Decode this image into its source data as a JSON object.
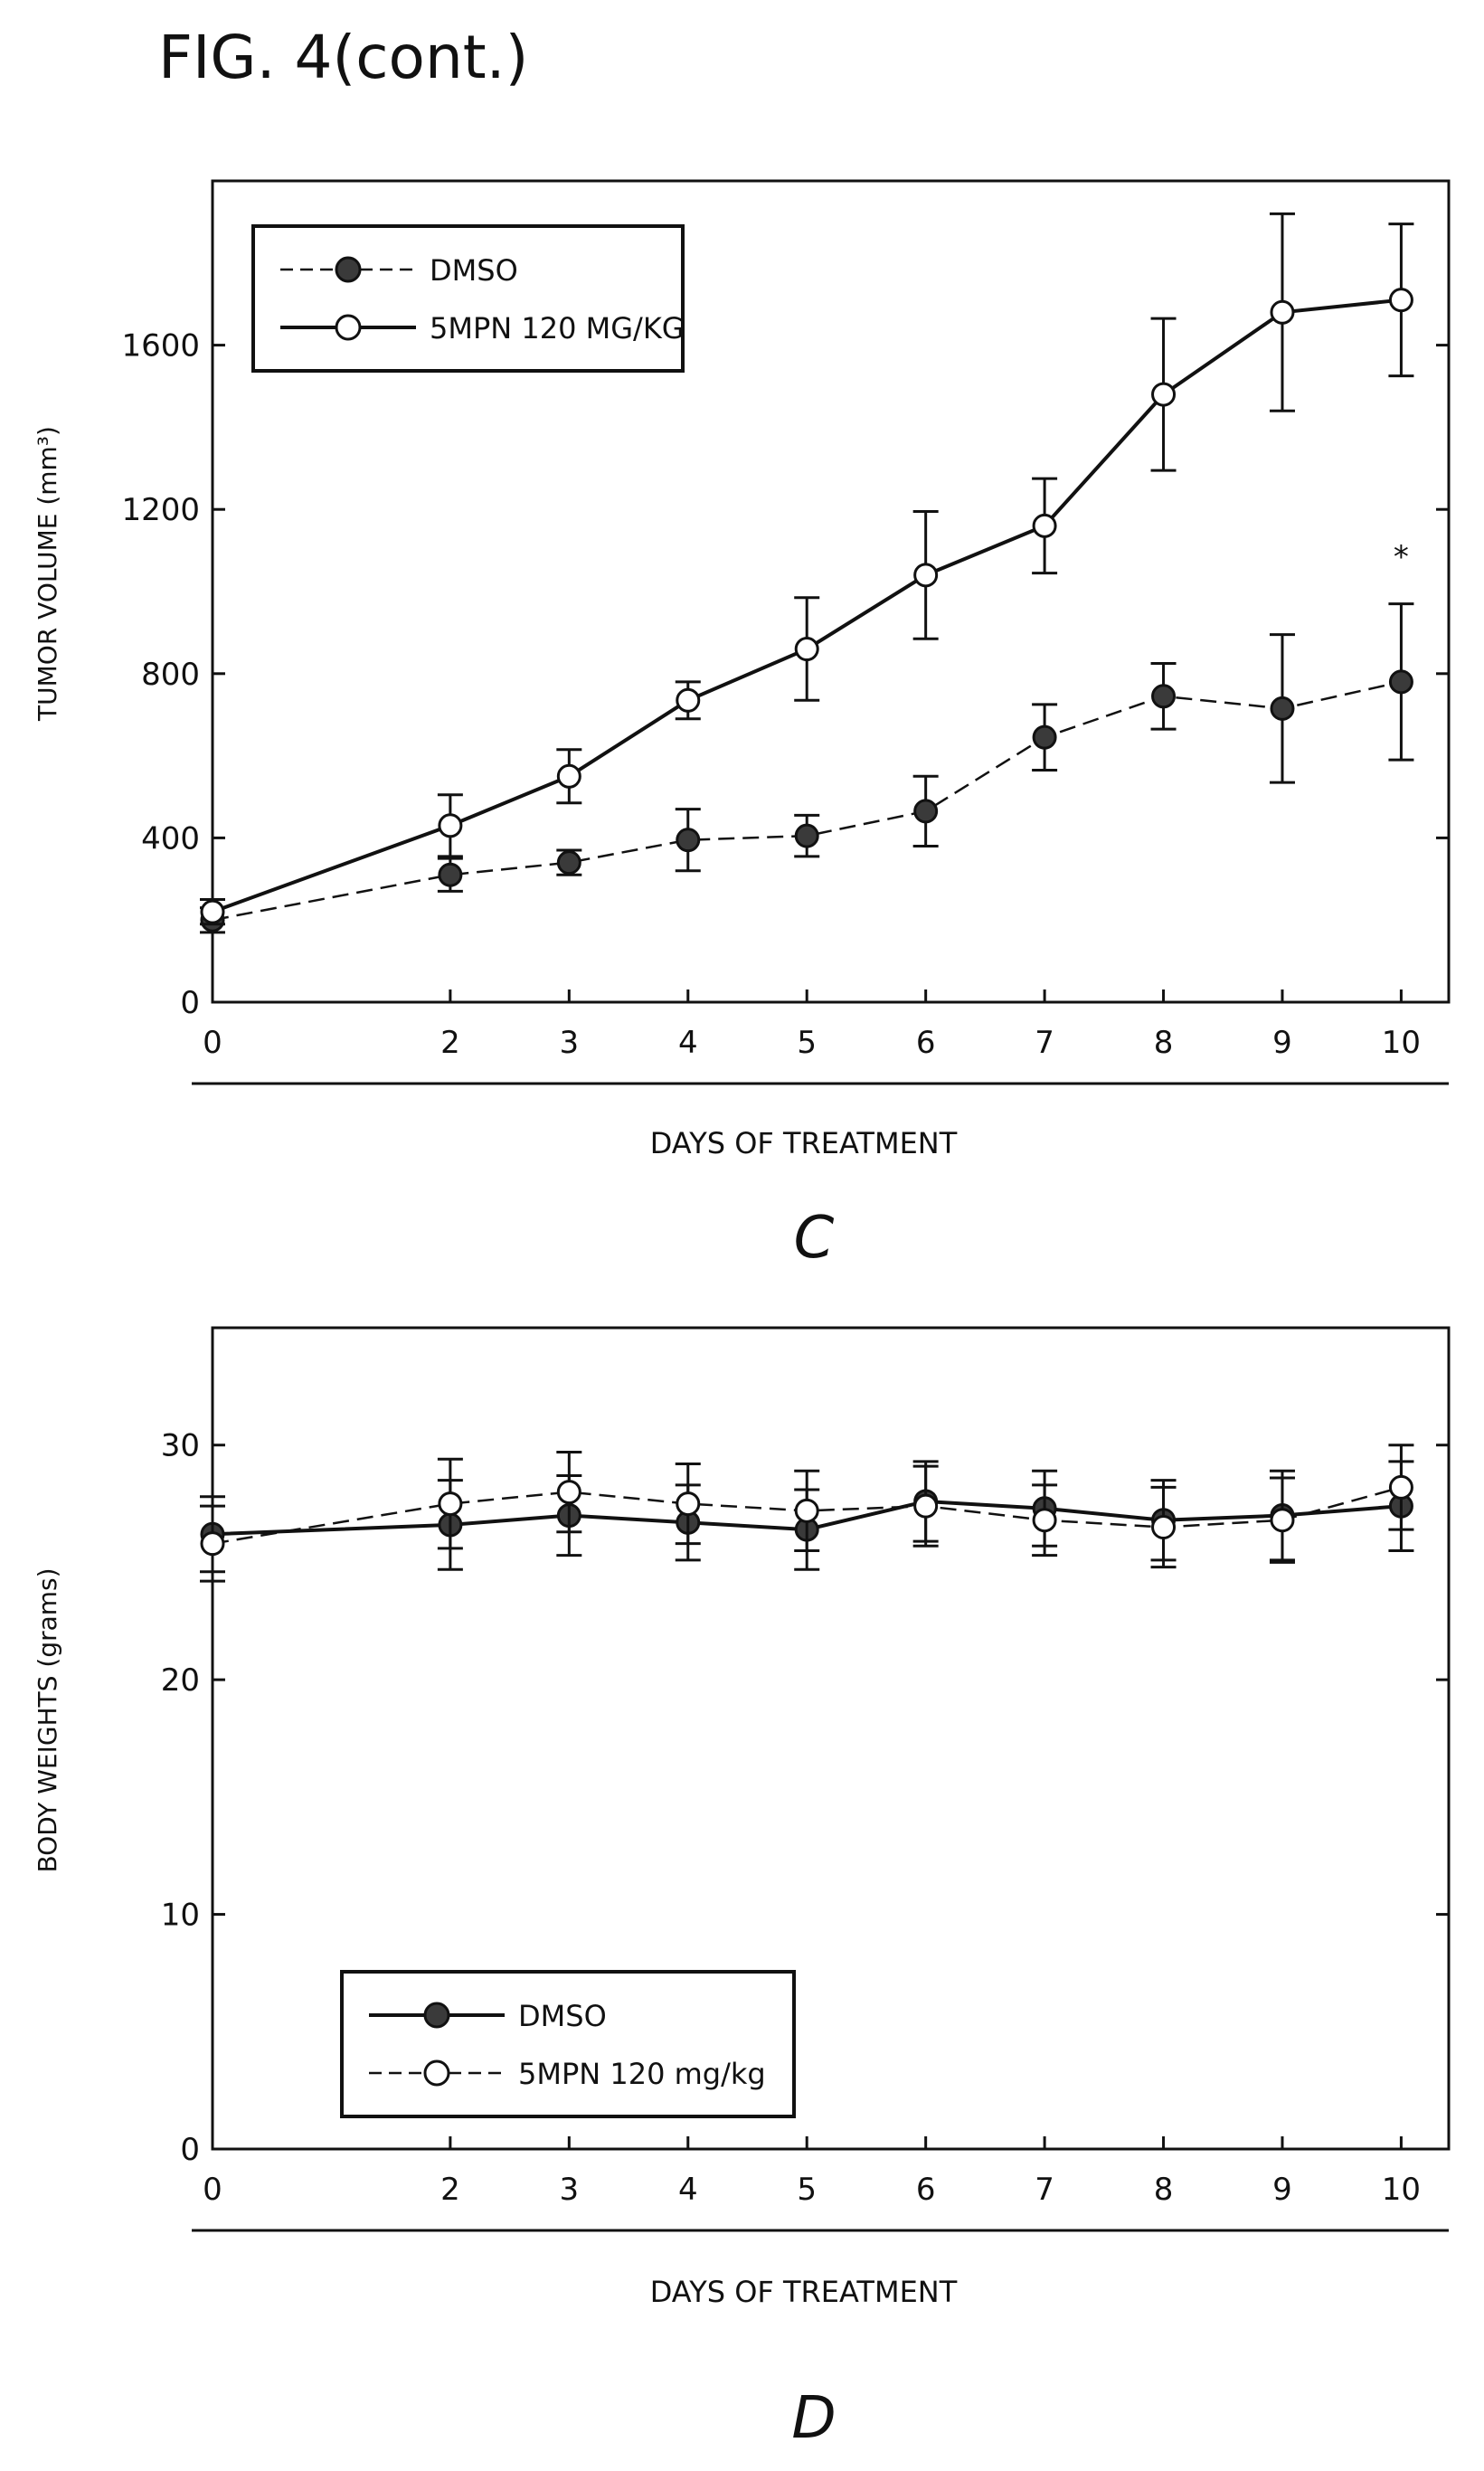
{
  "figure_title": "FIG. 4(cont.)",
  "chart_data": [
    {
      "type": "line",
      "panel_label": "C",
      "title": "",
      "xlabel": "DAYS OF TREATMENT",
      "ylabel": "TUMOR VOLUME (mm³)",
      "xlim": [
        0,
        10.4
      ],
      "ylim": [
        0,
        2000
      ],
      "xticks": [
        0,
        2,
        3,
        4,
        5,
        6,
        7,
        8,
        9,
        10
      ],
      "yticks": [
        0,
        400,
        800,
        1200,
        1600
      ],
      "x": [
        0,
        2,
        3,
        4,
        5,
        6,
        7,
        8,
        9,
        10
      ],
      "grid": false,
      "legend_position": "top-left",
      "annotation": "*",
      "annotation_x": 10,
      "annotation_y": 1060,
      "series": [
        {
          "name": "DMSO",
          "values": [
            200,
            310,
            340,
            395,
            405,
            465,
            645,
            745,
            715,
            780
          ],
          "errors": [
            30,
            40,
            30,
            75,
            50,
            85,
            80,
            80,
            180,
            190
          ],
          "marker": "filled",
          "line": "dashed"
        },
        {
          "name": "5MPN 120 MG/KG",
          "values": [
            220,
            430,
            550,
            735,
            860,
            1040,
            1160,
            1480,
            1680,
            1710
          ],
          "errors": [
            30,
            75,
            65,
            45,
            125,
            155,
            115,
            185,
            240,
            185
          ],
          "marker": "open",
          "line": "solid"
        }
      ]
    },
    {
      "type": "line",
      "panel_label": "D",
      "title": "",
      "xlabel": "DAYS OF TREATMENT",
      "ylabel": "BODY WEIGHTS (grams)",
      "xlim": [
        0,
        10.4
      ],
      "ylim": [
        0,
        35
      ],
      "xticks": [
        0,
        2,
        3,
        4,
        5,
        6,
        7,
        8,
        9,
        10
      ],
      "yticks": [
        0,
        10,
        20,
        30
      ],
      "x": [
        0,
        2,
        3,
        4,
        5,
        6,
        7,
        8,
        9,
        10
      ],
      "grid": false,
      "legend_position": "bottom-left",
      "series": [
        {
          "name": "DMSO",
          "values": [
            26.2,
            26.6,
            27.0,
            26.7,
            26.4,
            27.6,
            27.3,
            26.8,
            27.0,
            27.4
          ],
          "errors": [
            1.6,
            1.9,
            1.7,
            1.6,
            1.7,
            1.7,
            1.6,
            1.7,
            1.9,
            1.9
          ],
          "marker": "filled",
          "line": "solid"
        },
        {
          "name": "5MPN 120 mg/kg",
          "values": [
            25.8,
            27.5,
            28.0,
            27.5,
            27.2,
            27.4,
            26.8,
            26.5,
            26.8,
            28.2
          ],
          "errors": [
            1.6,
            1.9,
            1.7,
            1.7,
            1.7,
            1.7,
            1.5,
            1.7,
            1.8,
            1.8
          ],
          "marker": "open",
          "line": "dashed"
        }
      ]
    }
  ]
}
